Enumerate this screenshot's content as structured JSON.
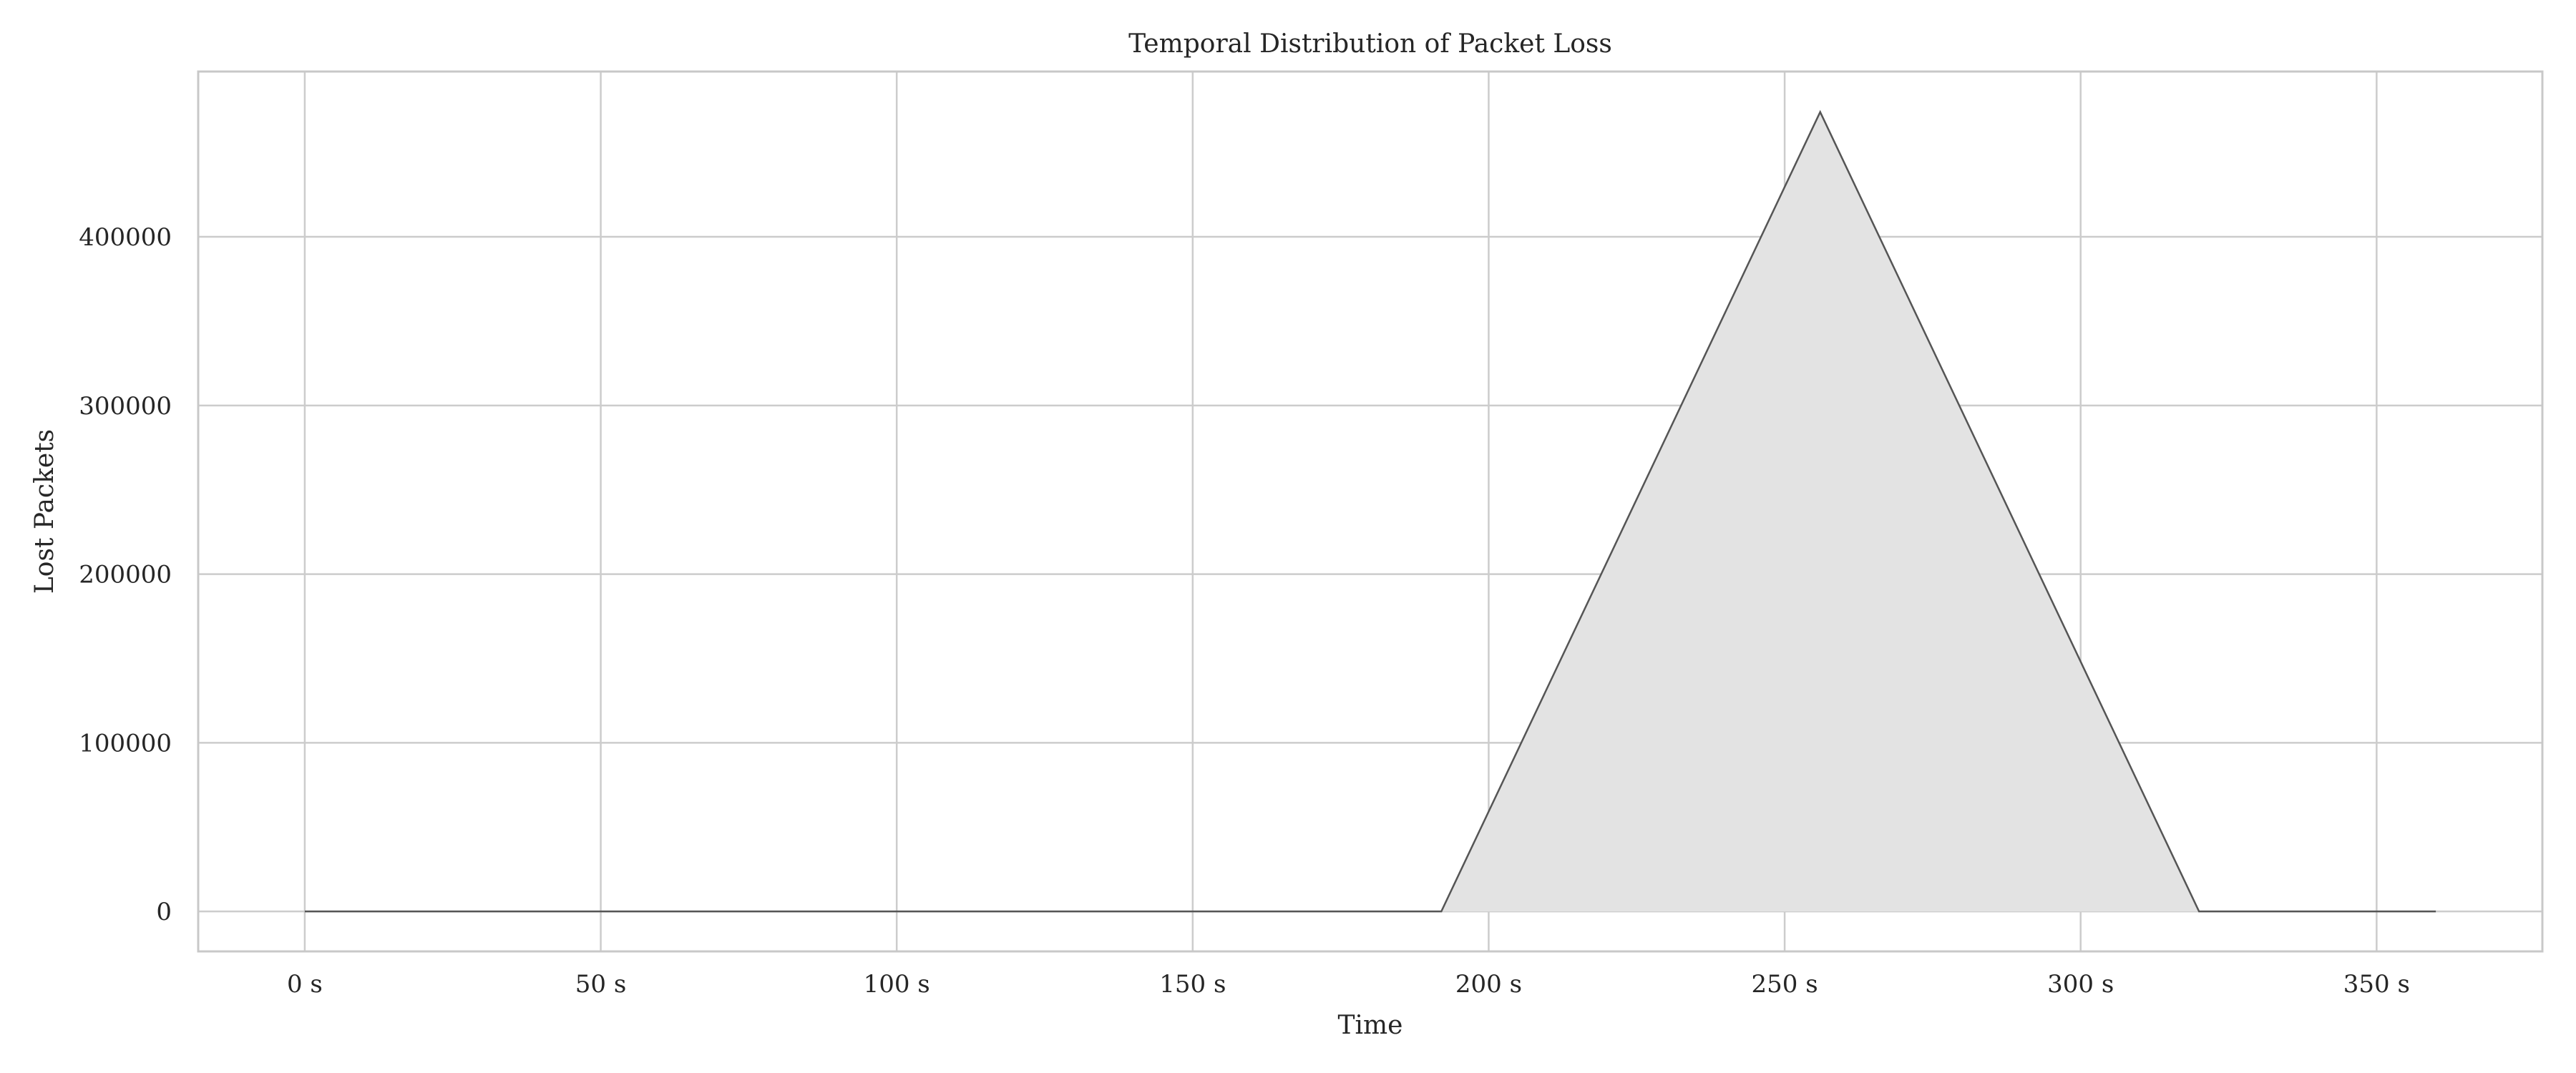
{
  "chart_data": {
    "type": "area",
    "title": "Temporal Distribution of Packet Loss",
    "xlabel": "Time",
    "ylabel": "Lost Packets",
    "x_tick_values": [
      0,
      50,
      100,
      150,
      200,
      250,
      300,
      350
    ],
    "x_tick_labels": [
      "0 s",
      "50 s",
      "100 s",
      "150 s",
      "200 s",
      "250 s",
      "300 s",
      "350 s"
    ],
    "y_tick_values": [
      0,
      100000,
      200000,
      300000,
      400000
    ],
    "y_tick_labels": [
      "0",
      "100000",
      "200000",
      "300000",
      "400000"
    ],
    "xlim": [
      -18,
      378
    ],
    "ylim": [
      -23700,
      498000
    ],
    "grid": true,
    "series": [
      {
        "x": [
          0,
          192,
          256,
          320,
          360
        ],
        "y": [
          0,
          0,
          474000,
          0,
          0
        ]
      }
    ],
    "colors": {
      "fill": "#e3e3e3",
      "line": "#555555",
      "grid": "#cccccc",
      "frame": "#c8c8c8"
    }
  }
}
